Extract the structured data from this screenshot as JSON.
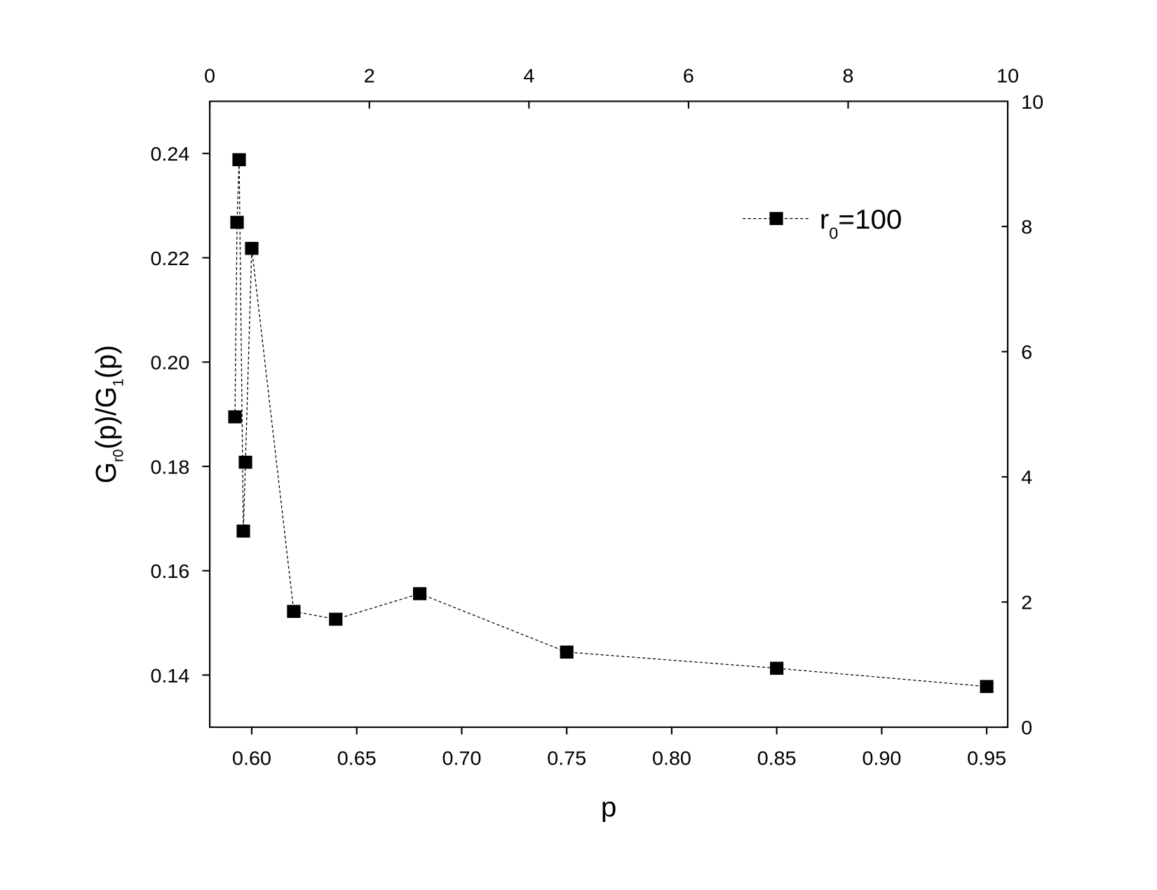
{
  "chart_data": {
    "type": "line",
    "xlabel": "p",
    "ylabel": [
      "G",
      "r0",
      "(p)/G",
      "1",
      "(p)"
    ],
    "x": [
      0.592,
      0.593,
      0.594,
      0.596,
      0.597,
      0.6,
      0.62,
      0.64,
      0.68,
      0.75,
      0.85,
      0.95
    ],
    "series": [
      {
        "name": [
          "r",
          "0",
          "=100"
        ],
        "color": "#000000",
        "values": [
          0.1895,
          0.2268,
          0.2388,
          0.1676,
          0.1808,
          0.2218,
          0.1522,
          0.1507,
          0.1556,
          0.1444,
          0.1413,
          0.1378
        ]
      }
    ],
    "xlim": [
      0.58,
      0.96
    ],
    "xticks": [
      {
        "value": 0.6,
        "label": "0.60"
      },
      0.65,
      {
        "value": 0.7,
        "label": "0.70"
      },
      0.75,
      {
        "value": 0.8,
        "label": "0.80"
      },
      0.85,
      {
        "value": 0.9,
        "label": "0.90"
      },
      0.95
    ],
    "ylim": [
      0.13,
      0.25
    ],
    "yticks": [
      0.14,
      0.16,
      0.18,
      {
        "value": 0.2,
        "label": "0.20"
      },
      0.22,
      0.24
    ],
    "x2lim": [
      0,
      10
    ],
    "x2ticks": [
      0,
      2,
      4,
      6,
      8,
      10
    ],
    "y2lim": [
      0,
      10
    ],
    "y2ticks": [
      0,
      2,
      4,
      6,
      8,
      10
    ],
    "legend": "upper right"
  }
}
